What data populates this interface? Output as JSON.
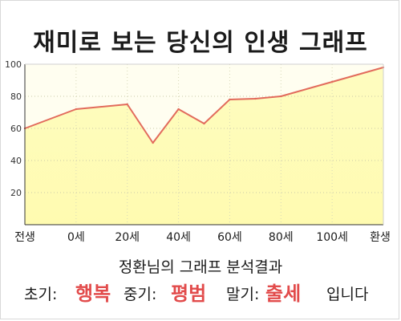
{
  "title": "재미로 보는 당신의 인생 그래프",
  "chart_data": {
    "type": "area",
    "x_labels": [
      "전생",
      "0세",
      "20세",
      "40세",
      "60세",
      "80세",
      "100세",
      "환생"
    ],
    "points": [
      {
        "x": -1.0,
        "y": 60
      },
      {
        "x": 0.0,
        "y": 72
      },
      {
        "x": 1.0,
        "y": 75
      },
      {
        "x": 1.5,
        "y": 51
      },
      {
        "x": 2.0,
        "y": 72
      },
      {
        "x": 2.5,
        "y": 63
      },
      {
        "x": 3.0,
        "y": 78
      },
      {
        "x": 3.5,
        "y": 78.5
      },
      {
        "x": 4.0,
        "y": 80
      },
      {
        "x": 5.0,
        "y": 89
      },
      {
        "x": 6.0,
        "y": 98
      }
    ],
    "yticks": [
      20,
      40,
      60,
      80,
      100
    ],
    "ylim": [
      0,
      100
    ],
    "colors": {
      "fill": "#fefcc0",
      "fill_top": "#fffef0",
      "line": "#e26b5c"
    }
  },
  "analysis": {
    "heading": "정환님의 그래프 분석결과",
    "early_label": "초기:",
    "early_value": "행복",
    "middle_label": "중기:",
    "middle_value": "평범",
    "late_label": "말기:",
    "late_value": "출세",
    "ending": "입니다"
  }
}
